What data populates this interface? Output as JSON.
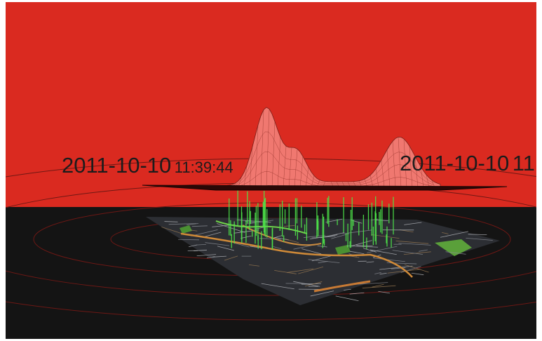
{
  "view": {
    "sky_color": "#da2a20",
    "ground_color": "#141414",
    "ring_color": "#7a1a16",
    "surface_fill": "#f07870",
    "surface_line": "#7a1e18",
    "bar_color": "#4ee64a"
  },
  "timestamps": {
    "left": {
      "date": "2011-10-10",
      "time": "11:39:44"
    },
    "right": {
      "date": "2011-10-10",
      "time": "11"
    }
  }
}
